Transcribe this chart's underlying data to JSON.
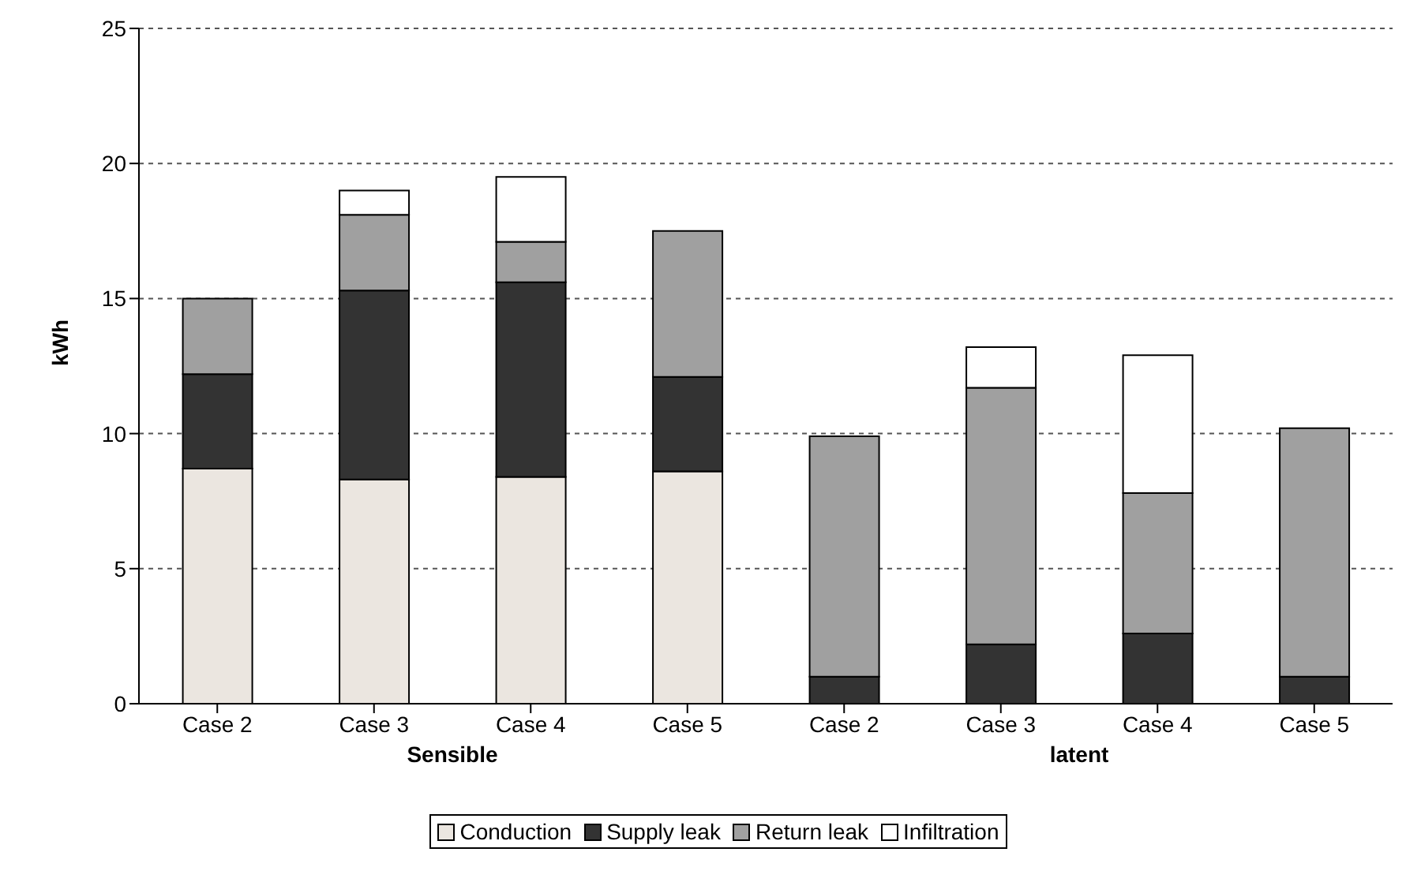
{
  "chart_data": {
    "type": "bar",
    "stacked": true,
    "ylabel": "kWh",
    "categories": [
      "Case 2",
      "Case 3",
      "Case 4",
      "Case 5",
      "Case 2",
      "Case 3",
      "Case 4",
      "Case 5"
    ],
    "series": [
      {
        "name": "Conduction",
        "color": "#ebe6e0",
        "values": [
          8.7,
          8.3,
          8.4,
          8.6,
          0,
          0,
          0,
          0
        ]
      },
      {
        "name": "Supply leak",
        "color": "#333333",
        "values": [
          3.5,
          7.0,
          7.2,
          3.5,
          1.0,
          2.2,
          2.6,
          1.0
        ]
      },
      {
        "name": "Return leak",
        "color": "#a0a0a0",
        "values": [
          2.8,
          2.8,
          1.5,
          5.4,
          8.9,
          9.5,
          5.2,
          9.2
        ]
      },
      {
        "name": "Infiltration",
        "color": "#ffffff",
        "values": [
          0,
          0.9,
          2.4,
          0,
          0,
          1.5,
          5.1,
          0
        ]
      }
    ],
    "ylim": [
      0,
      25
    ],
    "yticks": [
      0,
      5,
      10,
      15,
      20,
      25
    ],
    "grid": "y",
    "legend": "bottom",
    "annotations": [
      "Sensible",
      "latent"
    ]
  }
}
